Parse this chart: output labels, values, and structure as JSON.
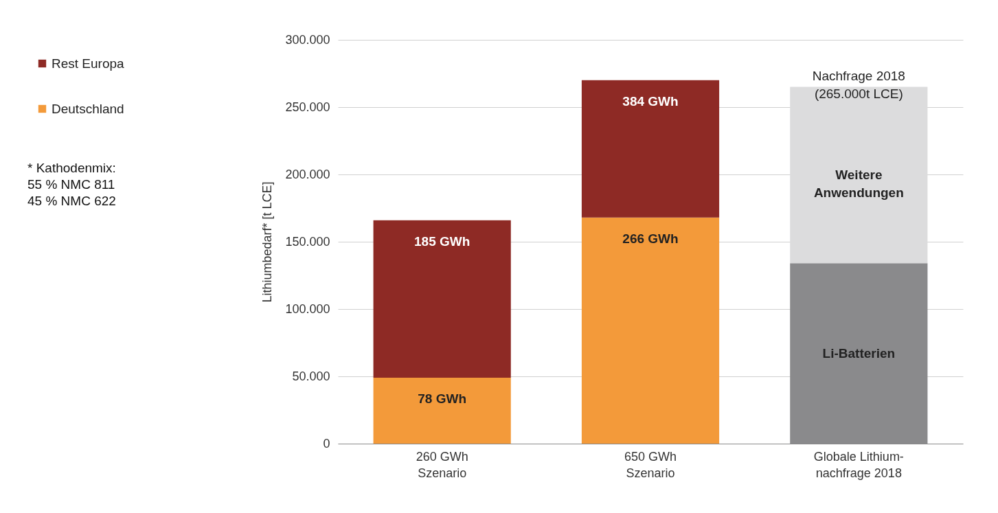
{
  "chart_data": {
    "type": "bar",
    "stacked": true,
    "ylabel": "Lithiumbedarf*  [t LCE]",
    "categories": [
      "260 GWh\nSzenario",
      "650 GWh\nSzenario",
      "Globale Lithium-\nnachfrage 2018"
    ],
    "series": [
      {
        "name": "Deutschland",
        "color": "#f39a3a",
        "values": [
          49000,
          168000,
          null
        ]
      },
      {
        "name": "Rest Europa",
        "color": "#8e2a25",
        "values": [
          117000,
          102000,
          null
        ]
      },
      {
        "name": "Li-Batterien",
        "color": "#8a8a8c",
        "values": [
          null,
          null,
          134000
        ]
      },
      {
        "name": "Weitere Anwendungen",
        "color": "#dcdcdd",
        "values": [
          null,
          null,
          131000
        ]
      }
    ],
    "ylim": [
      0,
      300000
    ],
    "yticks": [
      0,
      {
        "value": 50000,
        "label": "50.000"
      },
      {
        "value": 100000,
        "label": "100.000"
      },
      {
        "value": 150000,
        "label": "150.000"
      },
      {
        "value": 200000,
        "label": "200.000"
      },
      {
        "value": 250000,
        "label": "250.000"
      },
      {
        "value": 300000,
        "label": "300.000"
      }
    ],
    "grid": "y",
    "legend": "left",
    "annotations": [
      {
        "text": "Nachfrage 2018\n(265.000t LCE)",
        "x": "Globale Lithium-\nnachfrage 2018",
        "y": 265000
      },
      {
        "text": "78 GWh",
        "x": "260 GWh\nSzenario",
        "y": 49000
      },
      {
        "text": "185 GWh",
        "x": "260 GWh\nSzenario",
        "y": 166000
      },
      {
        "text": "266 GWh",
        "x": "650 GWh\nSzenario",
        "y": 168000
      },
      {
        "text": "384 GWh",
        "x": "650 GWh\nSzenario",
        "y": 270000
      },
      "* Kathodenmix:\n55 % NMC 811\n45 % NMC 622"
    ]
  }
}
